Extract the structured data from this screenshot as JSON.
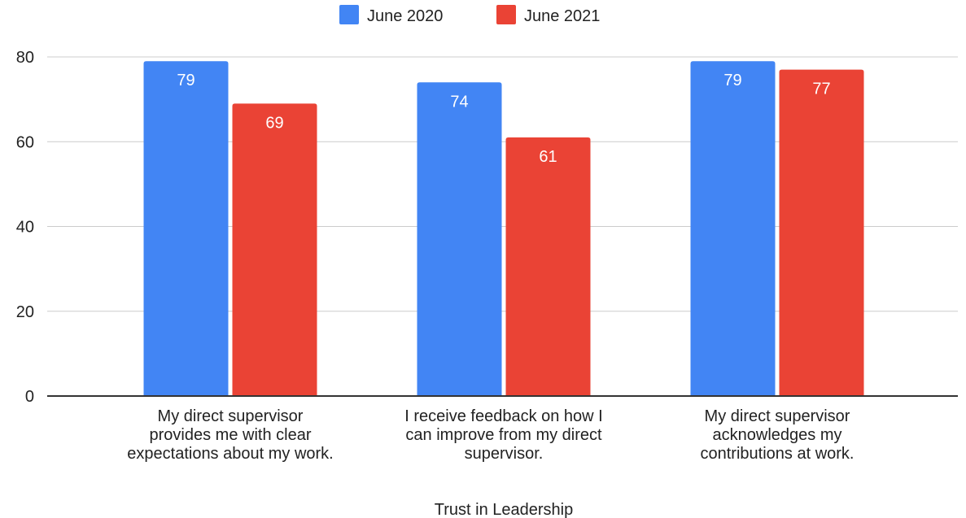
{
  "chart_data": {
    "type": "bar",
    "xlabel": "Trust in Leadership",
    "ylim": [
      0,
      80
    ],
    "yticks": [
      0,
      20,
      40,
      60,
      80
    ],
    "grid": true,
    "legend_position": "top",
    "categories": [
      [
        "My direct supervisor",
        "provides me with clear",
        "expectations about my work."
      ],
      [
        "I receive feedback on how I",
        "can improve from my direct",
        "supervisor."
      ],
      [
        "My direct supervisor",
        "acknowledges my",
        "contributions at work."
      ]
    ],
    "series": [
      {
        "name": "June 2020",
        "color": "#4285f4",
        "values": [
          79,
          74,
          79
        ]
      },
      {
        "name": "June 2021",
        "color": "#ea4335",
        "values": [
          69,
          61,
          77
        ]
      }
    ]
  }
}
